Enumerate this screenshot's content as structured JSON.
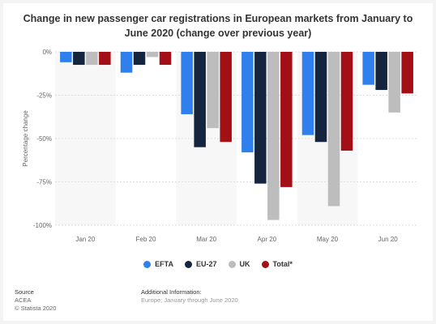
{
  "chart_data": {
    "type": "bar",
    "title": "Change in new passenger car registrations in European markets from January to June 2020 (change over previous year)",
    "ylabel": "Percentage change",
    "ylim": [
      -100,
      0
    ],
    "yticks": [
      "0%",
      "-25%",
      "-50%",
      "-75%",
      "-100%"
    ],
    "ytick_values": [
      0,
      -25,
      -50,
      -75,
      -100
    ],
    "categories": [
      "Jan 20",
      "Feb 20",
      "Mar 20",
      "Apr 20",
      "May 20",
      "Jun 20"
    ],
    "series": [
      {
        "name": "EFTA",
        "color": "#2f80ed",
        "values": [
          -6,
          -12,
          -36,
          -58,
          -48,
          -19
        ]
      },
      {
        "name": "EU-27",
        "color": "#14253d",
        "values": [
          -7.5,
          -7.5,
          -55,
          -76,
          -52,
          -22
        ]
      },
      {
        "name": "UK",
        "color": "#bdbdbd",
        "values": [
          -7.5,
          -3,
          -44,
          -97,
          -89,
          -35
        ]
      },
      {
        "name": "Total*",
        "color": "#a30f17",
        "values": [
          -7.5,
          -7.5,
          -52,
          -78,
          -57,
          -24
        ]
      }
    ],
    "grid": true,
    "legend_position": "bottom"
  },
  "footer": {
    "source_heading": "Source",
    "source_lines": [
      "ACEA",
      "© Statista 2020"
    ],
    "info_heading": "Additional Information:",
    "info_text": "Europe; January through June 2020"
  }
}
